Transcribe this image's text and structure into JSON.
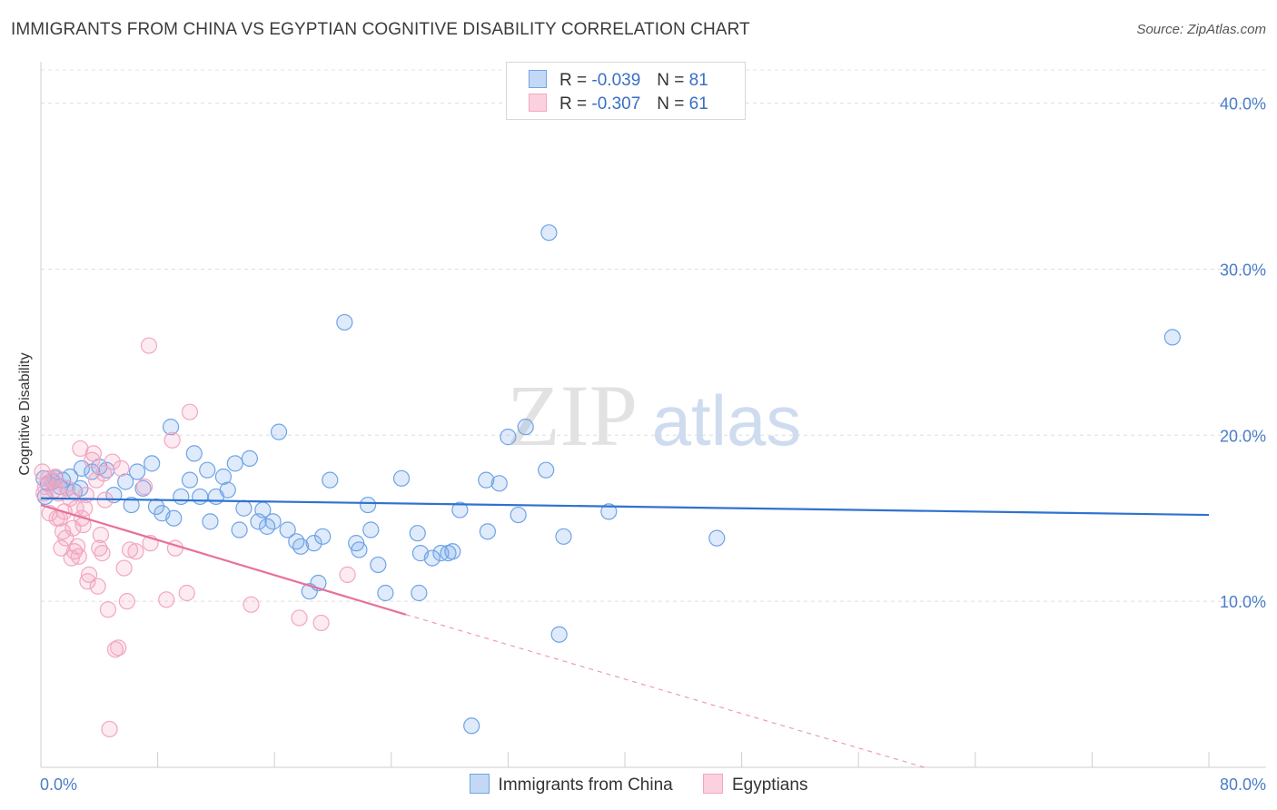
{
  "title": "IMMIGRANTS FROM CHINA VS EGYPTIAN COGNITIVE DISABILITY CORRELATION CHART",
  "source": "Source: ZipAtlas.com",
  "watermark": {
    "zip": "ZIP",
    "atlas": "atlas"
  },
  "legend": {
    "r_label": "R =",
    "n_label": "N =",
    "rows": [
      {
        "r": "-0.039",
        "n": "81",
        "color": "#6fa3e8"
      },
      {
        "r": "-0.307",
        "n": "61",
        "color": "#f3a6c1"
      }
    ]
  },
  "chart_data": {
    "type": "scatter",
    "title": "IMMIGRANTS FROM CHINA VS EGYPTIAN COGNITIVE DISABILITY CORRELATION CHART",
    "xlabel": "",
    "ylabel": "Cognitive Disability",
    "xlim": [
      0,
      80
    ],
    "ylim": [
      0,
      42
    ],
    "x_tick_labels": [
      "0.0%",
      "80.0%"
    ],
    "y_ticks": [
      10,
      20,
      30,
      40
    ],
    "y_tick_labels": [
      "10.0%",
      "20.0%",
      "30.0%",
      "40.0%"
    ],
    "series": [
      {
        "name": "Immigrants from China",
        "color": "#6fa3e8",
        "trend": {
          "x": [
            0,
            80
          ],
          "y": [
            16.2,
            15.2
          ],
          "dashed_to": null
        },
        "points": [
          [
            0.2,
            17.4
          ],
          [
            0.5,
            17.1
          ],
          [
            0.8,
            17.2
          ],
          [
            1.0,
            17.4
          ],
          [
            1.3,
            16.9
          ],
          [
            1.5,
            17.3
          ],
          [
            1.8,
            16.8
          ],
          [
            2.0,
            17.5
          ],
          [
            2.3,
            16.6
          ],
          [
            2.8,
            18.0
          ],
          [
            3.5,
            17.8
          ],
          [
            4.0,
            18.1
          ],
          [
            4.5,
            17.9
          ],
          [
            5.0,
            16.4
          ],
          [
            5.8,
            17.2
          ],
          [
            6.2,
            15.8
          ],
          [
            6.6,
            17.8
          ],
          [
            7.0,
            16.8
          ],
          [
            7.6,
            18.3
          ],
          [
            7.9,
            15.7
          ],
          [
            8.3,
            15.3
          ],
          [
            8.9,
            20.5
          ],
          [
            9.1,
            15.0
          ],
          [
            9.6,
            16.3
          ],
          [
            10.2,
            17.3
          ],
          [
            10.5,
            18.9
          ],
          [
            10.9,
            16.3
          ],
          [
            11.4,
            17.9
          ],
          [
            11.6,
            14.8
          ],
          [
            12.0,
            16.3
          ],
          [
            12.5,
            17.5
          ],
          [
            12.8,
            16.7
          ],
          [
            13.3,
            18.3
          ],
          [
            13.6,
            14.3
          ],
          [
            13.9,
            15.6
          ],
          [
            14.3,
            18.6
          ],
          [
            14.9,
            14.8
          ],
          [
            15.2,
            15.5
          ],
          [
            15.5,
            14.5
          ],
          [
            15.9,
            14.8
          ],
          [
            16.3,
            20.2
          ],
          [
            16.9,
            14.3
          ],
          [
            17.5,
            13.6
          ],
          [
            17.8,
            13.3
          ],
          [
            18.4,
            10.6
          ],
          [
            18.7,
            13.5
          ],
          [
            19.0,
            11.1
          ],
          [
            19.3,
            13.9
          ],
          [
            19.8,
            17.3
          ],
          [
            20.8,
            26.8
          ],
          [
            21.6,
            13.5
          ],
          [
            21.8,
            13.1
          ],
          [
            22.4,
            15.8
          ],
          [
            22.6,
            14.3
          ],
          [
            23.1,
            12.2
          ],
          [
            23.6,
            10.5
          ],
          [
            24.7,
            17.4
          ],
          [
            25.8,
            14.1
          ],
          [
            26.0,
            12.9
          ],
          [
            26.8,
            12.6
          ],
          [
            27.4,
            12.9
          ],
          [
            27.9,
            12.9
          ],
          [
            28.2,
            13.0
          ],
          [
            28.7,
            15.5
          ],
          [
            29.5,
            2.5
          ],
          [
            30.5,
            17.3
          ],
          [
            30.6,
            14.2
          ],
          [
            31.4,
            17.1
          ],
          [
            32.0,
            19.9
          ],
          [
            32.7,
            15.2
          ],
          [
            33.2,
            20.5
          ],
          [
            34.6,
            17.9
          ],
          [
            34.8,
            32.2
          ],
          [
            35.5,
            8.0
          ],
          [
            35.8,
            13.9
          ],
          [
            38.9,
            15.4
          ],
          [
            46.3,
            13.8
          ],
          [
            77.5,
            25.9
          ],
          [
            2.7,
            16.8
          ],
          [
            0.3,
            16.3
          ],
          [
            25.9,
            10.5
          ]
        ]
      },
      {
        "name": "Egyptians",
        "color": "#f3a6c1",
        "trend": {
          "x": [
            0,
            25
          ],
          "y": [
            15.8,
            9.2
          ],
          "dashed_to": [
            60.5,
            0
          ]
        },
        "points": [
          [
            0.1,
            17.8
          ],
          [
            0.3,
            16.9
          ],
          [
            0.5,
            17.4
          ],
          [
            0.6,
            15.3
          ],
          [
            0.8,
            17.3
          ],
          [
            0.9,
            16.7
          ],
          [
            1.1,
            15.0
          ],
          [
            1.2,
            16.5
          ],
          [
            1.3,
            15.0
          ],
          [
            1.4,
            13.2
          ],
          [
            1.5,
            14.2
          ],
          [
            1.6,
            15.4
          ],
          [
            1.7,
            13.8
          ],
          [
            1.8,
            16.8
          ],
          [
            2.0,
            16.2
          ],
          [
            2.1,
            12.6
          ],
          [
            2.2,
            14.4
          ],
          [
            2.3,
            13.0
          ],
          [
            2.4,
            15.6
          ],
          [
            2.5,
            13.3
          ],
          [
            2.6,
            12.7
          ],
          [
            2.7,
            19.2
          ],
          [
            2.8,
            15.0
          ],
          [
            2.9,
            14.6
          ],
          [
            3.0,
            15.6
          ],
          [
            3.1,
            16.4
          ],
          [
            3.2,
            11.2
          ],
          [
            3.3,
            11.6
          ],
          [
            3.5,
            18.5
          ],
          [
            3.6,
            18.9
          ],
          [
            3.8,
            17.3
          ],
          [
            3.9,
            10.9
          ],
          [
            4.0,
            13.2
          ],
          [
            4.1,
            14.0
          ],
          [
            4.2,
            12.9
          ],
          [
            4.3,
            17.7
          ],
          [
            4.4,
            16.1
          ],
          [
            4.6,
            9.5
          ],
          [
            4.7,
            2.3
          ],
          [
            4.9,
            18.4
          ],
          [
            5.1,
            7.1
          ],
          [
            5.3,
            7.2
          ],
          [
            5.5,
            18.0
          ],
          [
            5.7,
            12.0
          ],
          [
            5.9,
            10.0
          ],
          [
            6.1,
            13.1
          ],
          [
            6.5,
            13.0
          ],
          [
            7.1,
            16.9
          ],
          [
            7.4,
            25.4
          ],
          [
            7.5,
            13.5
          ],
          [
            8.6,
            10.1
          ],
          [
            9.0,
            19.7
          ],
          [
            9.2,
            13.2
          ],
          [
            10.0,
            10.5
          ],
          [
            10.2,
            21.4
          ],
          [
            14.4,
            9.8
          ],
          [
            17.7,
            9.0
          ],
          [
            19.2,
            8.7
          ],
          [
            21.0,
            11.6
          ],
          [
            0.2,
            16.5
          ],
          [
            1.0,
            17.5
          ]
        ]
      }
    ]
  }
}
